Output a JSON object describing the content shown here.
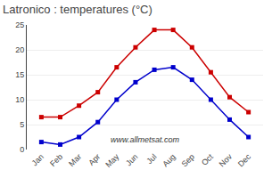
{
  "chart_data": {
    "type": "line",
    "title": "Latronico : temperatures (°C)",
    "categories": [
      "Jan",
      "Feb",
      "Mar",
      "Apr",
      "May",
      "Jun",
      "Jul",
      "Aug",
      "Sep",
      "Oct",
      "Nov",
      "Dec"
    ],
    "series": [
      {
        "color": "#cc0000",
        "values": [
          6.5,
          6.5,
          8.8,
          11.5,
          16.5,
          20.5,
          24.0,
          24.0,
          20.5,
          15.5,
          10.5,
          7.5
        ]
      },
      {
        "color": "#0000cc",
        "values": [
          1.5,
          1.0,
          2.5,
          5.5,
          10.0,
          13.5,
          16.0,
          16.5,
          14.0,
          10.0,
          6.0,
          2.5
        ]
      }
    ],
    "ylim": [
      0,
      25
    ],
    "yticks": [
      0,
      5,
      10,
      15,
      20,
      25
    ],
    "grid": true,
    "marker": "square",
    "line_style": "solid",
    "annotations": [
      "www.allmetsat.com"
    ]
  }
}
